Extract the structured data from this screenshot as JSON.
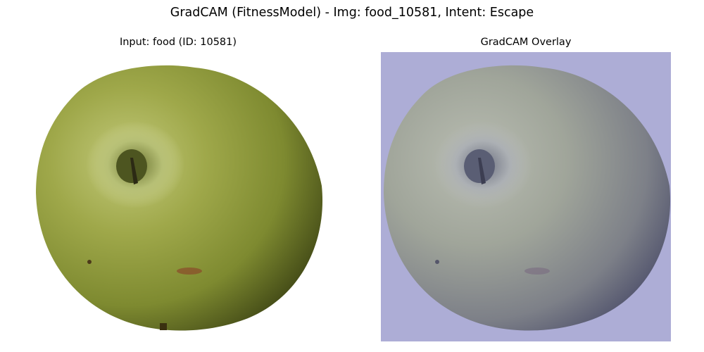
{
  "figure": {
    "title": "GradCAM (FitnessModel) - Img: food_10581, Intent: Escape"
  },
  "panels": [
    {
      "title": "Input: food (ID: 10581)",
      "image": "green-apple-photo"
    },
    {
      "title": "GradCAM Overlay",
      "image": "green-apple-gradcam-overlay"
    }
  ],
  "colors": {
    "apple_light": "#b7c06a",
    "apple_mid": "#8f9a3e",
    "apple_dark": "#3b4114",
    "overlay_background": "#adadd6",
    "overlay_apple_light": "#b4b8ac",
    "overlay_apple_dark": "#4c4f6a"
  }
}
